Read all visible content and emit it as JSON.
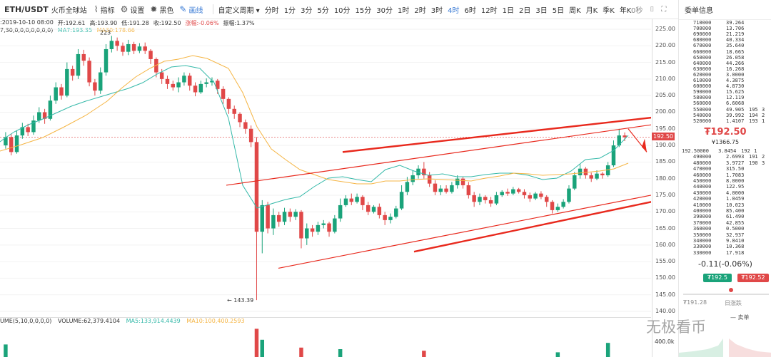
{
  "toolbar": {
    "pair": "ETH/USDT",
    "exchange": "火币全球站",
    "tools": [
      {
        "icon": "indicator-icon",
        "label": "指标"
      },
      {
        "icon": "gear-icon",
        "label": "设置"
      },
      {
        "icon": "sun-icon",
        "label": "黑色"
      },
      {
        "icon": "pen-icon",
        "label": "画线"
      }
    ],
    "custom_period": "自定义周期 ▾",
    "periods": [
      "分时",
      "1分",
      "3分",
      "5分",
      "10分",
      "15分",
      "30分",
      "1时",
      "2时",
      "3时",
      "4时",
      "6时",
      "12时",
      "1日",
      "2日",
      "3日",
      "5日",
      "周K",
      "月K",
      "季K",
      "年K"
    ],
    "active_period": "4时",
    "right_text": "0秒"
  },
  "info": {
    "time": ":2019-10-10 08:00",
    "open": "开:192.61",
    "high": "高:193.90",
    "low": "低:191.28",
    "close": "收:192.50",
    "change": "涨幅:-0.06%",
    "amplitude": "振幅:1.37%",
    "params": "7,30,0,0,0,0,0,0,0)",
    "ma7": "MA7:193.35",
    "ma30": "MA30:178.66",
    "high_marker": "223"
  },
  "colors": {
    "up": "#1aa37a",
    "down": "#e04848",
    "ma7": "#35b9a9",
    "ma30": "#f5b544",
    "trend": "#e8291d"
  },
  "chart_data": {
    "type": "candlestick",
    "y_ticks": [
      "225.00",
      "220.00",
      "215.00",
      "210.00",
      "205.00",
      "200.00",
      "195.00",
      "190.00",
      "185.00",
      "180.00",
      "175.00",
      "170.00",
      "165.00",
      "160.00",
      "155.00",
      "150.00",
      "145.00",
      "140.00"
    ],
    "ylim": [
      140,
      225
    ],
    "current_price": "192.50",
    "low_annotation": "← 143.39",
    "candles": [
      [
        190,
        192.5,
        189,
        194
      ],
      [
        192.5,
        188,
        187,
        193.5
      ],
      [
        188,
        193,
        187.5,
        194.5
      ],
      [
        193,
        195.5,
        192,
        196.8
      ],
      [
        195.5,
        194,
        192.8,
        196.5
      ],
      [
        194,
        197.5,
        193.2,
        199
      ],
      [
        197.5,
        200,
        196.8,
        201.5
      ],
      [
        200,
        198,
        196.5,
        201
      ],
      [
        198,
        203.5,
        197.5,
        205
      ],
      [
        203.5,
        207.5,
        202.5,
        209
      ],
      [
        207.5,
        205,
        203.8,
        208.5
      ],
      [
        205,
        213,
        204.5,
        215
      ],
      [
        213,
        211,
        209.5,
        214
      ],
      [
        211,
        217.5,
        210,
        219
      ],
      [
        217.5,
        215.5,
        214,
        218.8
      ],
      [
        215.5,
        209,
        207.8,
        216.5
      ],
      [
        209,
        206.5,
        205,
        210
      ],
      [
        206.5,
        212,
        205.5,
        213.5
      ],
      [
        212,
        219,
        211,
        220.5
      ],
      [
        219,
        221.5,
        218,
        223
      ],
      [
        221.5,
        220,
        218.5,
        222.5
      ],
      [
        220,
        218.2,
        217,
        221
      ],
      [
        218.2,
        220.5,
        217.2,
        221.8
      ],
      [
        220.5,
        218.5,
        217.5,
        221.2
      ],
      [
        218.5,
        219.8,
        217.8,
        220.8
      ],
      [
        219.8,
        218.5,
        217.5,
        221
      ],
      [
        218.5,
        216,
        214.5,
        219
      ],
      [
        216,
        212,
        210.5,
        216.5
      ],
      [
        212,
        210,
        208.5,
        213
      ],
      [
        210,
        208.5,
        207,
        211
      ],
      [
        208.5,
        207.5,
        206.5,
        209.5
      ],
      [
        207.5,
        209,
        206,
        210.5
      ],
      [
        209,
        211,
        208,
        212
      ],
      [
        211,
        208,
        206.5,
        211.8
      ],
      [
        208,
        206,
        204.8,
        209
      ],
      [
        206,
        208.5,
        205.5,
        209.5
      ],
      [
        208.5,
        209,
        207.5,
        210.2
      ],
      [
        209,
        209.5,
        208,
        210.5
      ],
      [
        209.5,
        207,
        205.5,
        210
      ],
      [
        207,
        204,
        202.5,
        207.8
      ],
      [
        204,
        201,
        199.5,
        204.5
      ],
      [
        201,
        199.5,
        198,
        202
      ],
      [
        199.5,
        197,
        195.5,
        200
      ],
      [
        197,
        195,
        193.5,
        197.8
      ],
      [
        195,
        191,
        189.5,
        196
      ],
      [
        191,
        164,
        143.4,
        192.5
      ],
      [
        164,
        172,
        157.5,
        173.5
      ],
      [
        172,
        165,
        163.5,
        173
      ],
      [
        165,
        169,
        163,
        171
      ],
      [
        169,
        167,
        165.5,
        170
      ],
      [
        167,
        170,
        166,
        171.2
      ],
      [
        170,
        168.5,
        167,
        171
      ],
      [
        168.5,
        170,
        167.5,
        170.8
      ],
      [
        170,
        162,
        159,
        170.5
      ],
      [
        162,
        165,
        160,
        166.5
      ],
      [
        165,
        164,
        162.5,
        166
      ],
      [
        164,
        166,
        163,
        167
      ],
      [
        166,
        166.5,
        165,
        167.5
      ],
      [
        166.5,
        164,
        162.5,
        167
      ],
      [
        164,
        168,
        163.5,
        169
      ],
      [
        168,
        172,
        167,
        174
      ],
      [
        172,
        174,
        171.5,
        175
      ],
      [
        174,
        173,
        172,
        175.5
      ],
      [
        173,
        174.5,
        172.5,
        175.5
      ],
      [
        174.5,
        172,
        170.5,
        175
      ],
      [
        172,
        170,
        169,
        173
      ],
      [
        170,
        171.5,
        169.5,
        172
      ],
      [
        171.5,
        169,
        168,
        172.5
      ],
      [
        169,
        167.5,
        166,
        170
      ],
      [
        167.5,
        168.5,
        166.5,
        169.5
      ],
      [
        168.5,
        171,
        168,
        171.8
      ],
      [
        171,
        176,
        170.5,
        178
      ],
      [
        176,
        179,
        175,
        180.5
      ],
      [
        179,
        181,
        178,
        182.5
      ],
      [
        181,
        183,
        180,
        184
      ],
      [
        183,
        181,
        180,
        185
      ],
      [
        181,
        178.5,
        177.5,
        182
      ],
      [
        178.5,
        176,
        175,
        179.5
      ],
      [
        176,
        177,
        175,
        178
      ],
      [
        177,
        176,
        175.5,
        178
      ],
      [
        176,
        178,
        175.5,
        179
      ],
      [
        178,
        180,
        177,
        181
      ],
      [
        180,
        178,
        177,
        180.5
      ],
      [
        178,
        175,
        174,
        179
      ],
      [
        175,
        173,
        171.5,
        176
      ],
      [
        173,
        174.5,
        172,
        175.5
      ],
      [
        174.5,
        173.5,
        172.5,
        175
      ],
      [
        173.5,
        172.5,
        171.5,
        174.5
      ],
      [
        172.5,
        175,
        172,
        176
      ],
      [
        175,
        176,
        174.5,
        176.5
      ],
      [
        176,
        175.5,
        174.8,
        177
      ],
      [
        175.5,
        176.8,
        175,
        177.5
      ],
      [
        176.8,
        176,
        175.5,
        177.2
      ],
      [
        176,
        175,
        174,
        176.8
      ],
      [
        175,
        174,
        173,
        175.8
      ],
      [
        174,
        175.5,
        173.5,
        176
      ],
      [
        175.5,
        174.5,
        173.8,
        176.2
      ],
      [
        174.5,
        173,
        171.5,
        175
      ],
      [
        173,
        170.5,
        169.5,
        173.5
      ],
      [
        170.5,
        171.5,
        170,
        172.5
      ],
      [
        171.5,
        173,
        171,
        173.8
      ],
      [
        173,
        177,
        172.5,
        178
      ],
      [
        177,
        181,
        176.5,
        182
      ],
      [
        181,
        183,
        180,
        184.5
      ],
      [
        183,
        181,
        180,
        183.5
      ],
      [
        181,
        180,
        179,
        181.8
      ],
      [
        180,
        181.5,
        179.5,
        182.5
      ],
      [
        181.5,
        181,
        180,
        182
      ],
      [
        181,
        184,
        180.5,
        185
      ],
      [
        184,
        190,
        183.5,
        191.5
      ],
      [
        190,
        193,
        189.5,
        195
      ],
      [
        193,
        192.5,
        191.3,
        193.9
      ]
    ],
    "ma7_line": [
      [
        0,
        199
      ],
      [
        8,
        193
      ],
      [
        20,
        185
      ],
      [
        40,
        175
      ],
      [
        60,
        167
      ],
      [
        80,
        158
      ],
      [
        100,
        149
      ],
      [
        120,
        142
      ],
      [
        140,
        136
      ],
      [
        160,
        130
      ],
      [
        180,
        124
      ],
      [
        200,
        116
      ],
      [
        220,
        104
      ],
      [
        240,
        94
      ],
      [
        260,
        92
      ],
      [
        280,
        96
      ],
      [
        300,
        116
      ],
      [
        320,
        166
      ],
      [
        340,
        260
      ],
      [
        360,
        292
      ],
      [
        380,
        286
      ],
      [
        400,
        280
      ],
      [
        420,
        276
      ],
      [
        440,
        262
      ],
      [
        460,
        250
      ],
      [
        480,
        248
      ],
      [
        500,
        252
      ],
      [
        520,
        255
      ],
      [
        540,
        238
      ],
      [
        560,
        232
      ],
      [
        580,
        240
      ],
      [
        600,
        246
      ],
      [
        620,
        244
      ],
      [
        640,
        248
      ],
      [
        660,
        248
      ],
      [
        680,
        245
      ],
      [
        700,
        243
      ],
      [
        720,
        243
      ],
      [
        740,
        246
      ],
      [
        760,
        252
      ],
      [
        780,
        250
      ],
      [
        800,
        240
      ],
      [
        820,
        224
      ],
      [
        840,
        222
      ],
      [
        860,
        211
      ],
      [
        880,
        190
      ]
    ],
    "ma30_line": [
      [
        0,
        212
      ],
      [
        30,
        203
      ],
      [
        60,
        193
      ],
      [
        90,
        178
      ],
      [
        120,
        162
      ],
      [
        150,
        142
      ],
      [
        170,
        124
      ],
      [
        190,
        108
      ],
      [
        210,
        96
      ],
      [
        230,
        86
      ],
      [
        250,
        83
      ],
      [
        270,
        78
      ],
      [
        290,
        82
      ],
      [
        320,
        96
      ],
      [
        340,
        130
      ],
      [
        360,
        178
      ],
      [
        380,
        209
      ],
      [
        400,
        224
      ],
      [
        420,
        238
      ],
      [
        440,
        245
      ],
      [
        460,
        252
      ],
      [
        480,
        255
      ],
      [
        500,
        258
      ],
      [
        520,
        258
      ],
      [
        540,
        254
      ],
      [
        560,
        254
      ],
      [
        580,
        252
      ],
      [
        600,
        251
      ],
      [
        620,
        252
      ],
      [
        640,
        253
      ],
      [
        660,
        254
      ],
      [
        680,
        250
      ],
      [
        700,
        247
      ],
      [
        720,
        243
      ],
      [
        740,
        244
      ],
      [
        760,
        246
      ],
      [
        780,
        245
      ],
      [
        800,
        244
      ],
      [
        820,
        242
      ],
      [
        840,
        240
      ],
      [
        860,
        237
      ],
      [
        880,
        229
      ]
    ]
  },
  "volume": {
    "label": "UME(5,10,0,0,0,0)",
    "value": "VOLUME:62,379.4104",
    "ma5": "MA5:133,914.4439",
    "ma10": "MA10:100,400.2593",
    "axis_label": "400.0k"
  },
  "orderbook": {
    "title": "委单信息",
    "asks": [
      [
        "710000",
        "39.264"
      ],
      [
        "700000",
        "13.706"
      ],
      [
        "690000",
        "21.219"
      ],
      [
        "680000",
        "40.334"
      ],
      [
        "670000",
        "35.640"
      ],
      [
        "660000",
        "18.665"
      ],
      [
        "650000",
        "26.058"
      ],
      [
        "640000",
        "44.266"
      ],
      [
        "630000",
        "16.268"
      ],
      [
        "620000",
        "3.0000"
      ],
      [
        "610000",
        "4.3875"
      ],
      [
        "600000",
        "4.8730"
      ],
      [
        "590000",
        "15.625"
      ],
      [
        "580000",
        "12.119"
      ],
      [
        "560000",
        "6.6068"
      ],
      [
        "550000",
        "49.905"
      ],
      [
        "540000",
        "39.992"
      ],
      [
        "520000",
        "1.4107"
      ]
    ],
    "ask_extra": [
      [
        "195",
        "3"
      ],
      [
        "194",
        "2"
      ],
      [
        "193",
        "1"
      ]
    ],
    "price": "₮192.50",
    "sub_price": "¥1366.75",
    "bids": [
      [
        "192.5",
        "3.8454"
      ],
      [
        "490000",
        "2.6993"
      ],
      [
        "480000",
        "3.9727"
      ],
      [
        "470000",
        "315.50"
      ],
      [
        "460000",
        "1.7083"
      ],
      [
        "450000",
        "8.0000"
      ],
      [
        "440000",
        "122.95"
      ],
      [
        "430000",
        "4.0000"
      ],
      [
        "420000",
        "1.0459"
      ],
      [
        "410000",
        "10.023"
      ],
      [
        "400000",
        "85.400"
      ],
      [
        "390000",
        "61.490"
      ],
      [
        "370000",
        "42.855"
      ],
      [
        "360000",
        "0.5000"
      ],
      [
        "350000",
        "32.937"
      ],
      [
        "340000",
        "9.8410"
      ],
      [
        "330000",
        "10.368"
      ],
      [
        "330000",
        "17.918"
      ]
    ],
    "bid_extra": [
      [
        "192",
        "1"
      ],
      [
        "191",
        "2"
      ],
      [
        "190",
        "3"
      ]
    ],
    "bid_first_prefix": "0000",
    "change": "-0.11(-0.06%)",
    "buy_btn": "₮192.5",
    "sell_btn": "₮192.52",
    "low_label": "₮191.28",
    "center_label": "日涨跌",
    "legend": "— 卖单"
  },
  "watermark": "无极看币"
}
